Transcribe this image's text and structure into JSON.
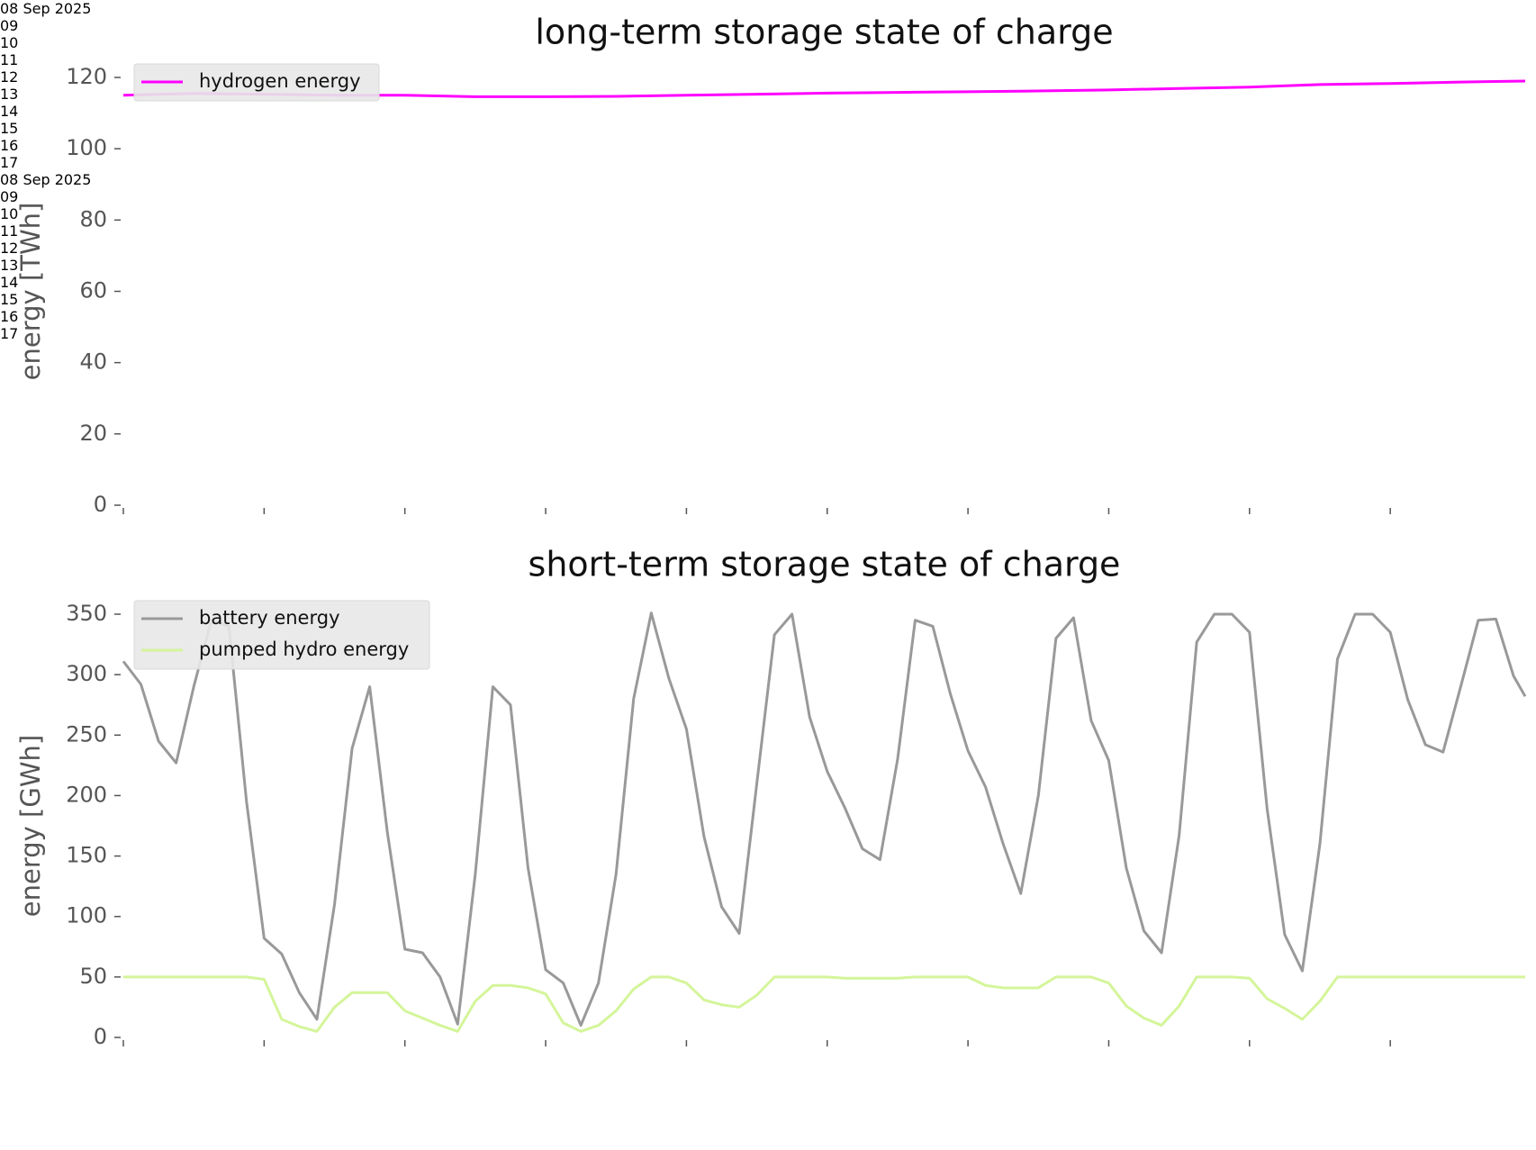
{
  "chart_data": [
    {
      "type": "line",
      "title": "long-term storage state of charge",
      "y_label": "energy [TWh]",
      "x": [
        "2025-09-08T00:00",
        "2025-09-08T12:00",
        "2025-09-09T00:00",
        "2025-09-09T12:00",
        "2025-09-10T00:00",
        "2025-09-10T12:00",
        "2025-09-11T00:00",
        "2025-09-11T12:00",
        "2025-09-12T00:00",
        "2025-09-12T12:00",
        "2025-09-13T00:00",
        "2025-09-13T12:00",
        "2025-09-14T00:00",
        "2025-09-14T12:00",
        "2025-09-15T00:00",
        "2025-09-15T12:00",
        "2025-09-16T00:00",
        "2025-09-16T12:00",
        "2025-09-17T00:00",
        "2025-09-17T12:00",
        "2025-09-17T23:00"
      ],
      "series": [
        {
          "name": "hydrogen energy",
          "color": "#ff00ff",
          "values": [
            115,
            115.5,
            115.3,
            115,
            115,
            114.6,
            114.6,
            114.7,
            115,
            115.3,
            115.6,
            115.8,
            116,
            116.2,
            116.5,
            116.9,
            117.3,
            118,
            118.3,
            118.7,
            119
          ]
        }
      ],
      "xlim": [
        "2025-09-08T00:00",
        "2025-09-17T23:00"
      ],
      "xticks": [
        {
          "value": "2025-09-08",
          "label": "08\nSep\n2025"
        },
        {
          "value": "2025-09-09",
          "label": "09"
        },
        {
          "value": "2025-09-10",
          "label": "10"
        },
        {
          "value": "2025-09-11",
          "label": "11"
        },
        {
          "value": "2025-09-12",
          "label": "12"
        },
        {
          "value": "2025-09-13",
          "label": "13"
        },
        {
          "value": "2025-09-14",
          "label": "14"
        },
        {
          "value": "2025-09-15",
          "label": "15"
        },
        {
          "value": "2025-09-16",
          "label": "16"
        },
        {
          "value": "2025-09-17",
          "label": "17"
        }
      ],
      "ylim": [
        0,
        120
      ],
      "yticks": [
        0,
        20,
        40,
        60,
        80,
        100,
        120
      ],
      "grid": false,
      "legend": "upper left"
    },
    {
      "type": "line",
      "title": "short-term storage state of charge",
      "y_label": "energy [GWh]",
      "x": [
        "2025-09-08T00:00",
        "2025-09-08T03:00",
        "2025-09-08T06:00",
        "2025-09-08T09:00",
        "2025-09-08T12:00",
        "2025-09-08T15:00",
        "2025-09-08T18:00",
        "2025-09-08T21:00",
        "2025-09-09T00:00",
        "2025-09-09T03:00",
        "2025-09-09T06:00",
        "2025-09-09T09:00",
        "2025-09-09T12:00",
        "2025-09-09T15:00",
        "2025-09-09T18:00",
        "2025-09-09T21:00",
        "2025-09-10T00:00",
        "2025-09-10T03:00",
        "2025-09-10T06:00",
        "2025-09-10T09:00",
        "2025-09-10T12:00",
        "2025-09-10T15:00",
        "2025-09-10T18:00",
        "2025-09-10T21:00",
        "2025-09-11T00:00",
        "2025-09-11T03:00",
        "2025-09-11T06:00",
        "2025-09-11T09:00",
        "2025-09-11T12:00",
        "2025-09-11T15:00",
        "2025-09-11T18:00",
        "2025-09-11T21:00",
        "2025-09-12T00:00",
        "2025-09-12T03:00",
        "2025-09-12T06:00",
        "2025-09-12T09:00",
        "2025-09-12T12:00",
        "2025-09-12T15:00",
        "2025-09-12T18:00",
        "2025-09-12T21:00",
        "2025-09-13T00:00",
        "2025-09-13T03:00",
        "2025-09-13T06:00",
        "2025-09-13T09:00",
        "2025-09-13T12:00",
        "2025-09-13T15:00",
        "2025-09-13T18:00",
        "2025-09-13T21:00",
        "2025-09-14T00:00",
        "2025-09-14T03:00",
        "2025-09-14T06:00",
        "2025-09-14T09:00",
        "2025-09-14T12:00",
        "2025-09-14T15:00",
        "2025-09-14T18:00",
        "2025-09-14T21:00",
        "2025-09-15T00:00",
        "2025-09-15T03:00",
        "2025-09-15T06:00",
        "2025-09-15T09:00",
        "2025-09-15T12:00",
        "2025-09-15T15:00",
        "2025-09-15T18:00",
        "2025-09-15T21:00",
        "2025-09-16T00:00",
        "2025-09-16T03:00",
        "2025-09-16T06:00",
        "2025-09-16T09:00",
        "2025-09-16T12:00",
        "2025-09-16T15:00",
        "2025-09-16T18:00",
        "2025-09-16T21:00",
        "2025-09-17T00:00",
        "2025-09-17T03:00",
        "2025-09-17T06:00",
        "2025-09-17T09:00",
        "2025-09-17T12:00",
        "2025-09-17T15:00",
        "2025-09-17T18:00",
        "2025-09-17T21:00",
        "2025-09-17T23:00"
      ],
      "series": [
        {
          "name": "battery energy",
          "color": "#999999",
          "values": [
            311,
            292,
            245,
            227,
            290,
            345,
            340,
            195,
            82,
            69,
            37,
            15,
            110,
            239,
            290,
            170,
            73,
            70,
            50,
            11,
            135,
            290,
            275,
            140,
            56,
            45,
            10,
            45,
            135,
            280,
            351,
            297,
            255,
            166,
            108,
            86,
            210,
            333,
            350,
            265,
            220,
            190,
            156,
            147,
            230,
            345,
            340,
            284,
            237,
            207,
            160,
            119,
            200,
            330,
            347,
            262,
            229,
            140,
            88,
            70,
            167,
            327,
            350,
            350,
            335,
            189,
            85,
            55,
            160,
            313,
            350,
            350,
            335,
            279,
            242,
            236,
            290,
            345,
            346,
            299,
            282
          ]
        },
        {
          "name": "pumped hydro energy",
          "color": "#d4f59a",
          "values": [
            50,
            50,
            50,
            50,
            50,
            50,
            50,
            50,
            48,
            15,
            9,
            5,
            25,
            37,
            37,
            37,
            22,
            16,
            10,
            5,
            30,
            43,
            43,
            41,
            36,
            12,
            5,
            10,
            22,
            40,
            50,
            50,
            45,
            31,
            27,
            25,
            35,
            50,
            50,
            50,
            50,
            49,
            49,
            49,
            49,
            50,
            50,
            50,
            50,
            43,
            41,
            41,
            41,
            50,
            50,
            50,
            45,
            26,
            16,
            10,
            26,
            50,
            50,
            50,
            49,
            32,
            24,
            15,
            30,
            50,
            50,
            50,
            50,
            50,
            50,
            50,
            50,
            50,
            50,
            50,
            50
          ]
        }
      ],
      "xlim": [
        "2025-09-08T00:00",
        "2025-09-17T23:00"
      ],
      "xticks": [
        {
          "value": "2025-09-08",
          "label": "08\nSep\n2025"
        },
        {
          "value": "2025-09-09",
          "label": "09"
        },
        {
          "value": "2025-09-10",
          "label": "10"
        },
        {
          "value": "2025-09-11",
          "label": "11"
        },
        {
          "value": "2025-09-12",
          "label": "12"
        },
        {
          "value": "2025-09-13",
          "label": "13"
        },
        {
          "value": "2025-09-14",
          "label": "14"
        },
        {
          "value": "2025-09-15",
          "label": "15"
        },
        {
          "value": "2025-09-16",
          "label": "16"
        },
        {
          "value": "2025-09-17",
          "label": "17"
        }
      ],
      "ylim": [
        0,
        350
      ],
      "yticks": [
        0,
        50,
        100,
        150,
        200,
        250,
        300,
        350
      ],
      "grid": false,
      "legend": "upper left"
    }
  ]
}
